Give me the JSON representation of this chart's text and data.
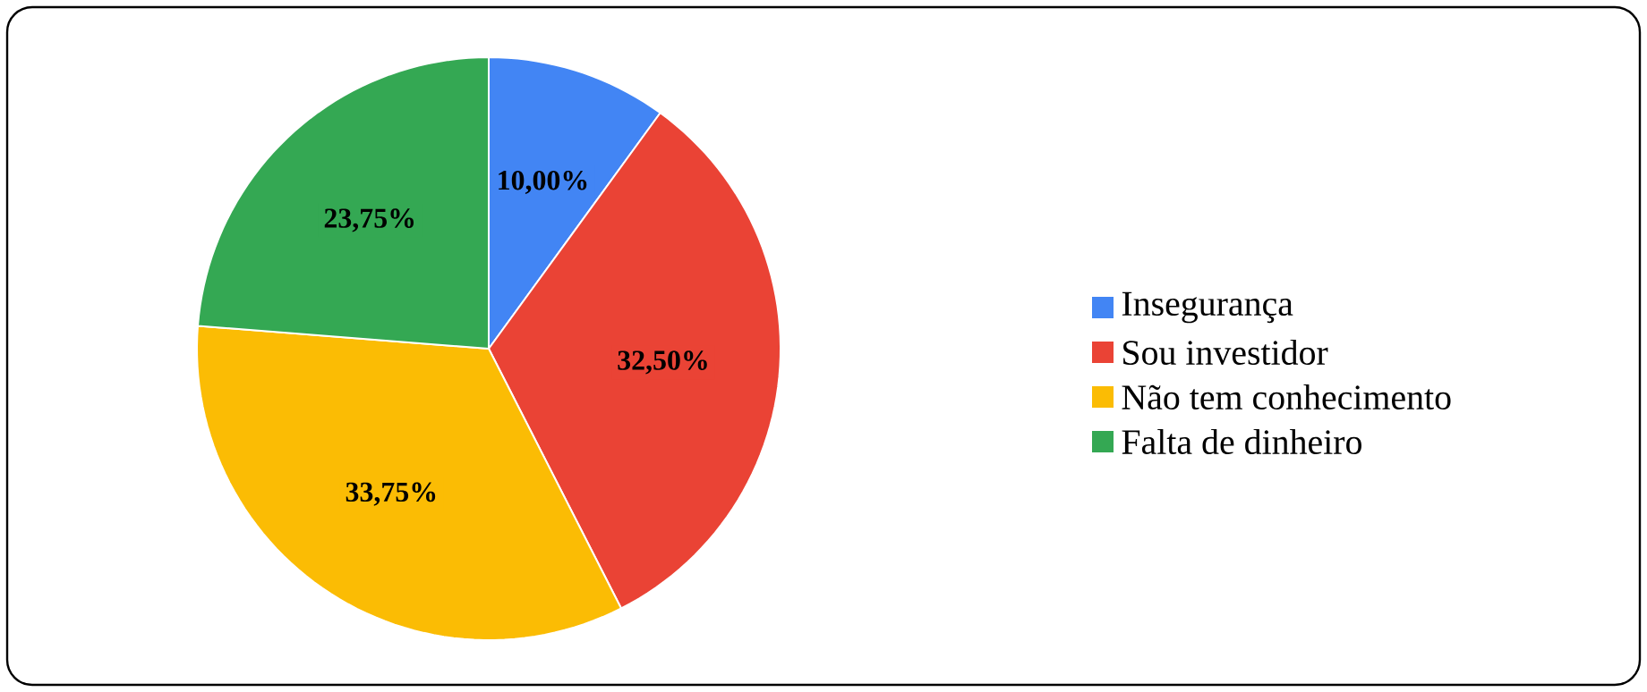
{
  "chart_data": {
    "type": "pie",
    "categories": [
      "Insegurança",
      "Sou investidor",
      "Não tem conhecimento",
      "Falta de dinheiro"
    ],
    "values": [
      10,
      32.5,
      33.75,
      23.75
    ],
    "value_labels": [
      "10,00%",
      "32,50%",
      "33,75%",
      "23,75%"
    ],
    "colors": [
      "#4285f4",
      "#ea4335",
      "#fbbc04",
      "#34a853"
    ],
    "legend": "right"
  }
}
